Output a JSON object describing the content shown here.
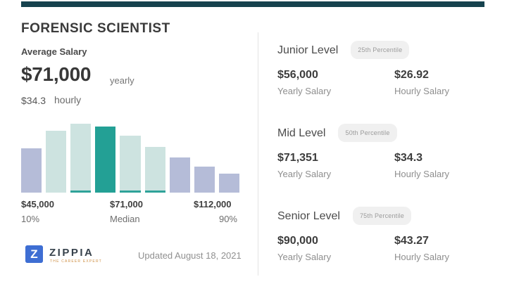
{
  "header": {
    "title": "FORENSIC SCIENTIST"
  },
  "average_salary": {
    "label": "Average Salary",
    "yearly_value": "$71,000",
    "yearly_unit": "yearly",
    "hourly_value": "$34.3",
    "hourly_unit": "hourly"
  },
  "chart_data": {
    "type": "bar",
    "title": "",
    "xlabel": "",
    "ylabel": "",
    "grid": "off",
    "legend": "off",
    "relative_heights": [
      64,
      90,
      100,
      96,
      83,
      66,
      51,
      38,
      28
    ],
    "bar_styles": [
      "lavender",
      "teal",
      "teal_strip",
      "dark_teal",
      "teal_strip",
      "teal_strip",
      "lavender",
      "lavender",
      "lavender"
    ],
    "percentiles": {
      "p10": 45000,
      "median": 71000,
      "p90": 112000
    },
    "x_tick_labels": [
      {
        "value": "$45,000",
        "sub": "10%"
      },
      {
        "value": "$71,000",
        "sub": "Median"
      },
      {
        "value": "$112,000",
        "sub": "90%"
      }
    ]
  },
  "levels": [
    {
      "name": "Junior Level",
      "badge": "25th Percentile",
      "yearly_value": "$56,000",
      "yearly_label": "Yearly Salary",
      "hourly_value": "$26.92",
      "hourly_label": "Hourly Salary"
    },
    {
      "name": "Mid Level",
      "badge": "50th Percentile",
      "yearly_value": "$71,351",
      "yearly_label": "Yearly Salary",
      "hourly_value": "$34.3",
      "hourly_label": "Hourly Salary"
    },
    {
      "name": "Senior Level",
      "badge": "75th Percentile",
      "yearly_value": "$90,000",
      "yearly_label": "Yearly Salary",
      "hourly_value": "$43.27",
      "hourly_label": "Hourly Salary"
    }
  ],
  "footer": {
    "logo_letter": "Z",
    "brand": "ZIPPIA",
    "tagline": "THE CAREER EXPERT",
    "updated": "Updated August 18, 2021"
  },
  "colors": {
    "top_bar": "#16424e",
    "lavender": "#b5bcd8",
    "teal": "#cde3e0",
    "teal_strip_base": "#2fa399",
    "dark_teal": "#23a095",
    "brand_blue": "#3e6ed3",
    "badge_bg": "#f0f0f0"
  }
}
